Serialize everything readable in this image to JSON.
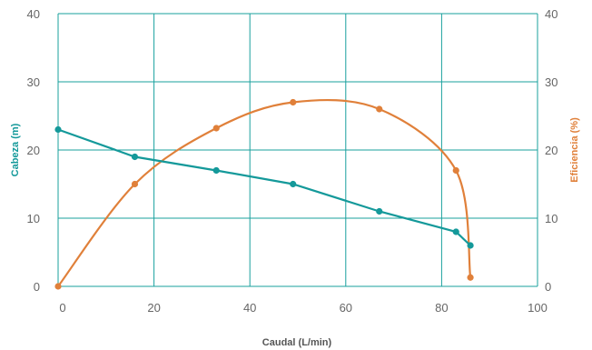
{
  "chart_data": {
    "type": "line",
    "xlabel": "Caudal (L/min)",
    "ylabel_left": "Cabeza (m)",
    "ylabel_right": "Eficiencia (%)",
    "xlim": [
      0,
      100
    ],
    "ylim_left": [
      0,
      40
    ],
    "ylim_right": [
      0,
      40
    ],
    "x_ticks": [
      "0",
      "20",
      "40",
      "60",
      "80",
      "100"
    ],
    "y_ticks_left": [
      "0",
      "10",
      "20",
      "30",
      "40"
    ],
    "y_ticks_right": [
      "0",
      "10",
      "20",
      "30",
      "40"
    ],
    "grid": true,
    "series": [
      {
        "axis": "left",
        "color": "#14999a",
        "x": [
          0,
          16,
          33,
          49,
          67,
          83,
          86
        ],
        "y": [
          23,
          19,
          17,
          15,
          11,
          8,
          6
        ]
      },
      {
        "axis": "right",
        "color": "#e0803a",
        "x": [
          0,
          16,
          33,
          49,
          67,
          83,
          86
        ],
        "y": [
          0,
          15,
          23.2,
          27,
          26,
          17,
          1.3
        ]
      }
    ]
  }
}
